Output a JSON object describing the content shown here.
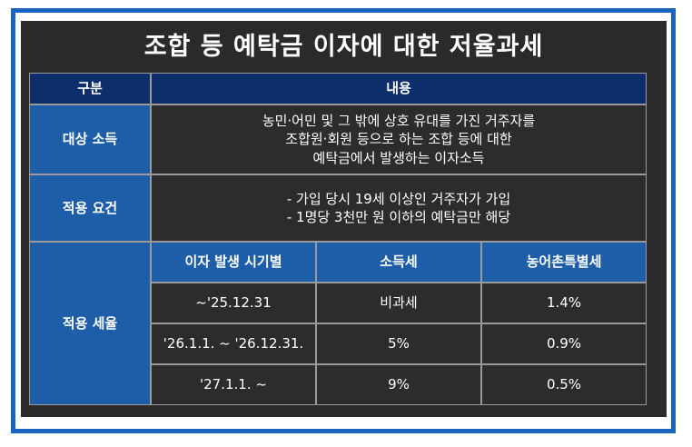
{
  "title": "조합 등 예탁금 이자에 대한 저율과세",
  "table": {
    "header": {
      "category": "구분",
      "content": "내용"
    },
    "rows": {
      "target_income": {
        "label": "대상 소득",
        "lines": [
          "농민·어민 및 그 밖에 상호 유대를 가진 거주자를",
          "조합원·회원 등으로 하는 조합 등에 대한",
          "예탁금에서 발생하는 이자소득"
        ]
      },
      "requirements": {
        "label": "적용 요건",
        "lines": [
          "- 가입 당시 19세 이상인 거주자가 가입",
          "- 1명당 3천만 원 이하의 예탁금만 해당"
        ]
      },
      "tax_rate": {
        "label": "적용 세율",
        "columns": [
          "이자 발생 시기별",
          "소득세",
          "농어촌특별세"
        ],
        "rows": [
          {
            "period": "~'25.12.31",
            "income_tax": "비과세",
            "rural_tax": "1.4%"
          },
          {
            "period": "'26.1.1. ~ '26.12.31.",
            "income_tax": "5%",
            "rural_tax": "0.9%"
          },
          {
            "period": "'27.1.1. ~",
            "income_tax": "9%",
            "rural_tax": "0.5%"
          }
        ]
      }
    }
  },
  "colors": {
    "header_bg": "#0d2e6b",
    "label_bg": "#1e5ea8",
    "panel_bg": "#2a2a2a",
    "frame_border": "#1a64c0"
  }
}
